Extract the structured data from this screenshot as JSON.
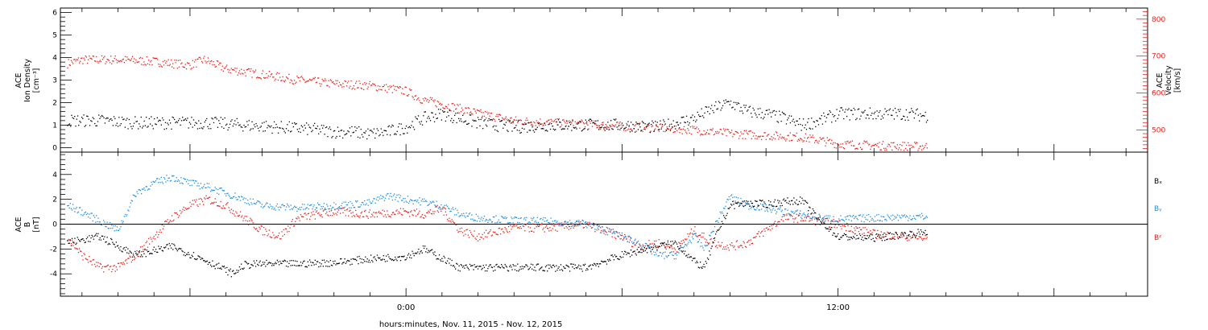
{
  "xlabel": "hours:minutes, Nov. 11, 2015 - Nov. 12, 2015",
  "x_ticks": [
    {
      "t": 0,
      "label": "0:00"
    },
    {
      "t": 12,
      "label": "12:00"
    }
  ],
  "x_range_hours": [
    -9.6,
    20.6
  ],
  "colors": {
    "black": "#000000",
    "red": "#e8231f",
    "blue": "#1f8de0"
  },
  "chart_data": [
    {
      "type": "scatter",
      "panel": "top",
      "ylabel_left": [
        "ACE",
        "Ion Density",
        "[cm⁻³]"
      ],
      "ylabel_right": [
        "ACE",
        "Velocity",
        "[km/s]"
      ],
      "y_left_range": [
        -0.2,
        6.2
      ],
      "y_left_ticks": [
        0,
        1,
        2,
        3,
        4,
        5,
        6
      ],
      "y_right_range": [
        440,
        830
      ],
      "y_right_ticks": [
        500,
        600,
        700,
        800
      ],
      "series": [
        {
          "key": "density",
          "axis": "left",
          "color": "#000000",
          "x": [
            -9.4,
            -8.5,
            -7.5,
            -6.5,
            -5.5,
            -4.5,
            -3.5,
            -2.5,
            -2.0,
            -1.5,
            -1.0,
            -0.5,
            0.0,
            0.5,
            1.0,
            1.5,
            2.0,
            3.0,
            4.0,
            5.0,
            6.0,
            7.0,
            7.5,
            8.0,
            8.5,
            9.0,
            9.5,
            10.0,
            10.5,
            11.0,
            11.5,
            12.0,
            13.0,
            14.0,
            14.5
          ],
          "y": [
            1.2,
            1.2,
            1.1,
            1.1,
            1.1,
            1.0,
            0.9,
            0.8,
            0.7,
            0.7,
            0.6,
            0.7,
            0.9,
            1.3,
            1.5,
            1.3,
            1.1,
            0.9,
            1.0,
            1.0,
            1.0,
            0.9,
            1.1,
            1.3,
            1.7,
            2.0,
            1.6,
            1.5,
            1.3,
            1.0,
            1.2,
            1.5,
            1.5,
            1.5,
            1.4
          ]
        },
        {
          "key": "velocity",
          "axis": "right",
          "color": "#e8231f",
          "x": [
            -9.4,
            -9.0,
            -8.0,
            -7.0,
            -6.0,
            -5.6,
            -5.0,
            -4.0,
            -3.0,
            -2.0,
            -1.0,
            0.0,
            0.5,
            1.0,
            2.0,
            3.0,
            4.0,
            5.0,
            6.0,
            7.0,
            8.0,
            9.0,
            10.0,
            11.0,
            11.5,
            12.0,
            13.0,
            14.0,
            14.5
          ],
          "y": [
            680,
            690,
            690,
            685,
            675,
            690,
            665,
            650,
            635,
            625,
            620,
            605,
            580,
            570,
            545,
            525,
            520,
            515,
            510,
            505,
            500,
            490,
            485,
            480,
            472,
            462,
            458,
            456,
            455
          ]
        }
      ]
    },
    {
      "type": "scatter",
      "panel": "bottom",
      "ylabel": [
        "ACE",
        "B",
        "[nT]"
      ],
      "y_range": [
        -5.8,
        5.8
      ],
      "y_ticks": [
        -4,
        -2,
        0,
        2,
        4
      ],
      "legend": [
        "Bₓ",
        "Bᵧ",
        "Bᶻ"
      ],
      "series": [
        {
          "key": "bx",
          "color": "#000000",
          "x": [
            -9.4,
            -8.5,
            -7.5,
            -6.5,
            -5.5,
            -4.8,
            -4.5,
            -4.0,
            -3.0,
            -2.0,
            -1.0,
            0.0,
            0.5,
            1.5,
            2.0,
            3.0,
            4.0,
            5.0,
            5.5,
            6.0,
            7.0,
            7.5,
            8.0,
            8.3,
            8.6,
            9.0,
            9.5,
            10.0,
            10.5,
            11.0,
            11.5,
            12.0,
            13.0,
            14.0,
            14.5
          ],
          "y": [
            -1.5,
            -1.0,
            -2.5,
            -1.8,
            -3.0,
            -4.0,
            -3.3,
            -3.2,
            -3.2,
            -3.1,
            -2.8,
            -2.6,
            -2.0,
            -3.5,
            -3.5,
            -3.5,
            -3.5,
            -3.5,
            -3.0,
            -2.5,
            -1.8,
            -1.5,
            -3.0,
            -3.5,
            -1.0,
            1.5,
            1.7,
            1.6,
            1.8,
            1.9,
            0.3,
            -1.0,
            -1.1,
            -0.8,
            -0.6
          ]
        },
        {
          "key": "by",
          "color": "#1f8de0",
          "x": [
            -9.4,
            -9.0,
            -8.0,
            -7.5,
            -7.0,
            -6.5,
            -6.0,
            -5.5,
            -5.0,
            -4.0,
            -3.0,
            -2.0,
            -1.0,
            -0.5,
            0.0,
            0.5,
            1.0,
            1.5,
            2.0,
            3.0,
            4.0,
            5.0,
            5.5,
            6.0,
            6.5,
            7.0,
            7.5,
            8.0,
            8.3,
            8.6,
            9.0,
            9.5,
            10.0,
            10.5,
            11.0,
            11.5,
            12.0,
            13.0,
            14.0,
            14.5
          ],
          "y": [
            1.5,
            1.0,
            -0.5,
            2.5,
            3.3,
            3.8,
            3.3,
            3.0,
            2.5,
            1.5,
            1.3,
            1.5,
            1.7,
            2.3,
            2.0,
            1.8,
            1.5,
            0.8,
            0.5,
            0.3,
            0.2,
            0.0,
            -0.5,
            -1.0,
            -1.5,
            -2.5,
            -2.5,
            -1.0,
            -2.0,
            0.0,
            2.2,
            1.5,
            1.3,
            1.0,
            0.8,
            0.5,
            0.4,
            0.5,
            0.6,
            0.6
          ]
        },
        {
          "key": "bz",
          "color": "#e8231f",
          "x": [
            -9.4,
            -9.0,
            -8.5,
            -8.0,
            -7.5,
            -7.0,
            -6.5,
            -6.0,
            -5.5,
            -5.0,
            -4.5,
            -4.0,
            -3.5,
            -3.0,
            -2.0,
            -1.0,
            0.0,
            0.5,
            1.0,
            1.5,
            2.0,
            3.0,
            4.0,
            5.0,
            5.5,
            6.0,
            6.5,
            7.0,
            7.5,
            8.0,
            8.5,
            9.0,
            9.5,
            10.0,
            10.5,
            11.0,
            11.5,
            12.0,
            13.0,
            14.0,
            14.5
          ],
          "y": [
            -1.0,
            -2.5,
            -3.5,
            -3.5,
            -2.5,
            -1.0,
            0.5,
            1.5,
            2.0,
            1.5,
            0.5,
            -0.5,
            -1.0,
            0.5,
            1.0,
            0.8,
            1.0,
            0.8,
            1.2,
            -0.5,
            -1.0,
            -0.3,
            -0.3,
            0.0,
            -0.5,
            -1.0,
            -1.8,
            -1.5,
            -2.0,
            -0.5,
            -1.5,
            -1.8,
            -1.5,
            -0.5,
            0.5,
            0.5,
            0.2,
            0.0,
            -0.8,
            -1.0,
            -1.2
          ]
        }
      ]
    }
  ]
}
